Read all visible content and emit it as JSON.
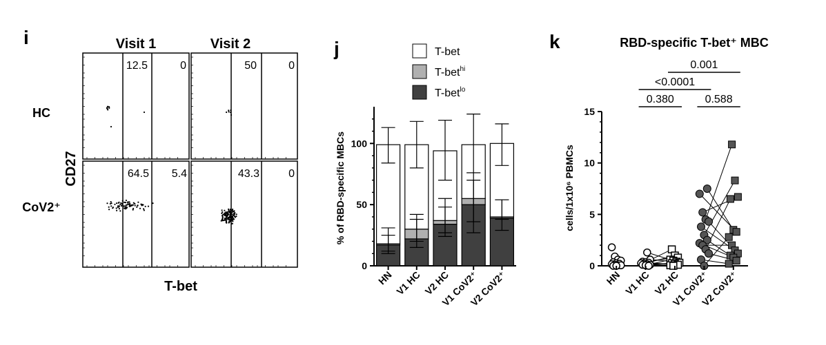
{
  "panel_i": {
    "letter": "i",
    "col_labels": [
      "Visit 1",
      "Visit 2"
    ],
    "row_labels": [
      "HC",
      "CoV2⁺"
    ],
    "x_axis_label": "T-bet",
    "y_axis_label": "CD27",
    "gates": [
      {
        "left": "12.5",
        "right": "0"
      },
      {
        "left": "50",
        "right": "0"
      },
      {
        "left": "64.5",
        "right": "5.4"
      },
      {
        "left": "43.3",
        "right": "0"
      }
    ]
  },
  "panel_j": {
    "letter": "j",
    "legend": [
      "T-bet",
      "T-bet",
      "T-bet"
    ],
    "legend_sup": [
      "",
      "hi",
      "lo"
    ],
    "legend_colors": [
      "#ffffff",
      "#b0b0b0",
      "#404040"
    ],
    "ylabel": "% of RBD-specific MBCs",
    "ytick_labels": [
      "0",
      "50",
      "100"
    ]
  },
  "panel_k": {
    "letter": "k",
    "title": "RBD-specific T-bet⁺ MBC",
    "ylabel": "cells/1x10⁶ PBMCs",
    "ytick_labels": [
      "0",
      "5",
      "10",
      "15"
    ],
    "pvalues": [
      "0.001",
      "<0.0001",
      "0.380",
      "0.588"
    ]
  },
  "chart_data": [
    {
      "type": "bar",
      "stacked": true,
      "categories": [
        "HN",
        "V1 HC",
        "V2 HC",
        "V1 CoV2⁺",
        "V2 CoV2⁺"
      ],
      "series": [
        {
          "name": "T-bet^lo",
          "values": [
            17,
            22,
            34,
            50,
            39
          ]
        },
        {
          "name": "T-bet^hi",
          "values": [
            1,
            8,
            3,
            5,
            1
          ]
        },
        {
          "name": "T-bet",
          "values": [
            81,
            69,
            57,
            44,
            60
          ]
        }
      ],
      "error_bars": {
        "T-bet^lo": [
          [
            10,
            25
          ],
          [
            15,
            38
          ],
          [
            24,
            48
          ],
          [
            27,
            70
          ],
          [
            29,
            54
          ]
        ],
        "T-bet^hi": [
          [
            12,
            31
          ],
          [
            20,
            42
          ],
          [
            27,
            55
          ],
          [
            36,
            76
          ],
          [
            38,
            54
          ]
        ],
        "T-bet": [
          [
            84,
            113
          ],
          [
            80,
            118
          ],
          [
            70,
            119
          ],
          [
            76,
            124
          ],
          [
            82,
            116
          ]
        ]
      },
      "ylabel": "% of RBD-specific MBCs",
      "ylim": [
        0,
        130
      ],
      "yticks": [
        0,
        50,
        100
      ]
    },
    {
      "type": "scatter",
      "categories": [
        "HN",
        "V1 HC",
        "V2 HC",
        "V1 CoV2⁺",
        "V2 CoV2⁺"
      ],
      "groups": [
        {
          "name": "HN",
          "values": [
            1.8,
            0.9,
            0.6,
            0.5,
            0.35,
            0.25,
            0.2,
            0.15,
            0.1,
            0.05,
            0.05,
            0.0,
            0.0
          ]
        },
        {
          "name": "V1 HC",
          "values": [
            1.3,
            0.6,
            0.4,
            0.35,
            0.3,
            0.25,
            0.2,
            0.15,
            0.1,
            0.1,
            0.05,
            0.0
          ]
        },
        {
          "name": "V2 HC",
          "values": [
            1.6,
            1.0,
            0.8,
            0.6,
            0.5,
            0.4,
            0.3,
            0.25,
            0.2,
            0.1,
            0.05,
            0.0
          ]
        },
        {
          "name": "V1 CoV2⁺",
          "values": [
            7.5,
            7.0,
            5.2,
            4.5,
            4.3,
            3.8,
            3.0,
            2.5,
            2.2,
            2.0,
            1.6,
            1.2,
            0.6,
            0.0
          ]
        },
        {
          "name": "V2 CoV2⁺",
          "values": [
            11.8,
            8.3,
            6.7,
            6.5,
            3.5,
            3.3,
            2.8,
            2.0,
            1.5,
            1.2,
            1.0,
            0.8,
            0.5,
            0.2
          ]
        }
      ],
      "pairs": [
        [
          0,
          4
        ],
        [
          1,
          5
        ],
        [
          2,
          2
        ],
        [
          3,
          0
        ],
        [
          4,
          9
        ],
        [
          5,
          8
        ],
        [
          6,
          1
        ],
        [
          7,
          10
        ],
        [
          8,
          11
        ],
        [
          9,
          7
        ],
        [
          10,
          3
        ],
        [
          11,
          12
        ],
        [
          12,
          13
        ],
        [
          13,
          6
        ]
      ],
      "comparisons": [
        {
          "from": 2,
          "to": 4,
          "label": "0.001"
        },
        {
          "from": 1,
          "to": 3,
          "label": "<0.0001"
        },
        {
          "from": 1,
          "to": 2,
          "label": "0.380"
        },
        {
          "from": 3,
          "to": 4,
          "label": "0.588"
        }
      ],
      "ylabel": "cells/1x10⁶ PBMCs",
      "ylim": [
        0,
        15
      ],
      "yticks": [
        0,
        5,
        10,
        15
      ]
    }
  ]
}
